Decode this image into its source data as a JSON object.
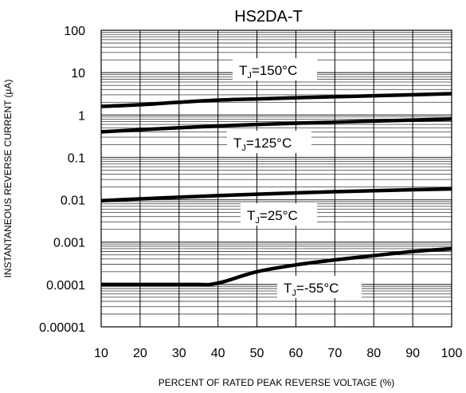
{
  "chart_data": {
    "type": "line",
    "title": "HS2DA-T",
    "xlabel": "PERCENT OF RATED PEAK REVERSE VOLTAGE (%)",
    "ylabel": "INSTANTANEOUS REVERSE CURRENT (μA)",
    "xlim": [
      10,
      100
    ],
    "ylim": [
      1e-05,
      100
    ],
    "yscale": "log",
    "grid": true,
    "x_ticks": [
      10,
      20,
      30,
      40,
      50,
      60,
      70,
      80,
      90,
      100
    ],
    "x_tick_labels": [
      "10",
      "20",
      "30",
      "40",
      "50",
      "60",
      "70",
      "80",
      "90",
      "100"
    ],
    "y_ticks": [
      1e-05,
      0.0001,
      0.001,
      0.01,
      0.1,
      1,
      10,
      100
    ],
    "y_tick_labels": [
      "0.00001",
      "0.0001",
      "0.001",
      "0.01",
      "0.1",
      "1",
      "10",
      "100"
    ],
    "series": [
      {
        "label_main": "T",
        "label_sub": "J",
        "label_tail": "=150°C",
        "x": [
          10,
          20,
          30,
          40,
          50,
          60,
          70,
          80,
          90,
          100
        ],
        "y": [
          1.6,
          1.75,
          2.0,
          2.25,
          2.4,
          2.55,
          2.7,
          2.85,
          3.0,
          3.2
        ]
      },
      {
        "label_main": "T",
        "label_sub": "J",
        "label_tail": "=125°C",
        "x": [
          10,
          20,
          30,
          40,
          50,
          60,
          70,
          80,
          90,
          100
        ],
        "y": [
          0.4,
          0.45,
          0.5,
          0.55,
          0.6,
          0.64,
          0.68,
          0.72,
          0.76,
          0.8
        ]
      },
      {
        "label_main": "T",
        "label_sub": "J",
        "label_tail": "=25°C",
        "x": [
          10,
          20,
          30,
          40,
          50,
          60,
          70,
          80,
          90,
          100
        ],
        "y": [
          0.0095,
          0.0105,
          0.0115,
          0.0125,
          0.0135,
          0.0145,
          0.0155,
          0.0163,
          0.0172,
          0.018
        ]
      },
      {
        "label_main": "T",
        "label_sub": "J",
        "label_tail": "=-55°C",
        "x": [
          10,
          20,
          30,
          35,
          38,
          42,
          50,
          60,
          70,
          80,
          90,
          100
        ],
        "y": [
          0.0001,
          0.0001,
          0.0001,
          0.0001,
          0.0001,
          0.00012,
          0.0002,
          0.00029,
          0.00038,
          0.00048,
          0.0006,
          0.0007
        ]
      }
    ]
  }
}
